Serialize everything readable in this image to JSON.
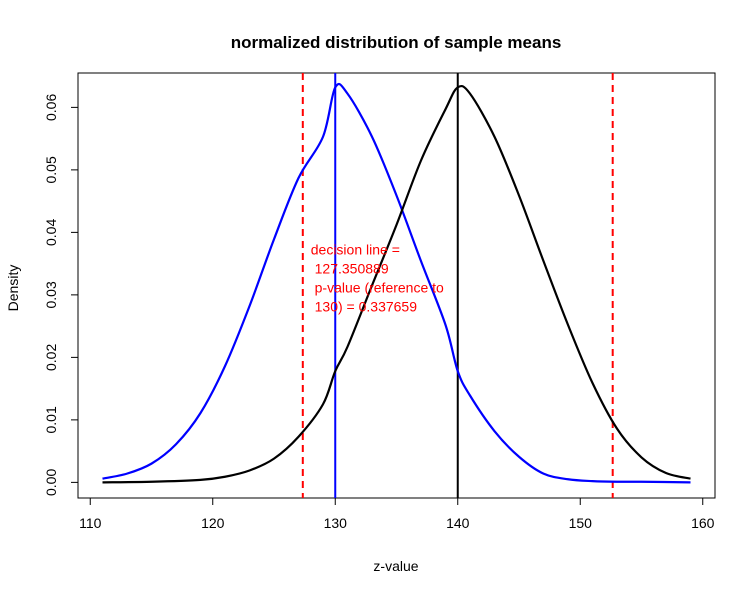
{
  "chart_data": {
    "type": "line",
    "title": "normalized distribution of sample means",
    "xlabel": "z-value",
    "ylabel": "Density",
    "xlim": [
      109,
      161
    ],
    "ylim": [
      -0.0025,
      0.0655
    ],
    "xticks": [
      110,
      120,
      130,
      140,
      150,
      160
    ],
    "yticks": [
      0.0,
      0.01,
      0.02,
      0.03,
      0.04,
      0.05,
      0.06
    ],
    "ytick_labels": [
      "0.00",
      "0.01",
      "0.02",
      "0.03",
      "0.04",
      "0.05",
      "0.06"
    ],
    "grid": false,
    "series": [
      {
        "color": "#0000ff",
        "points": [
          [
            111,
            0.0006
          ],
          [
            113,
            0.0014
          ],
          [
            115,
            0.003
          ],
          [
            117,
            0.0061
          ],
          [
            119,
            0.0111
          ],
          [
            121,
            0.0186
          ],
          [
            123,
            0.0282
          ],
          [
            125,
            0.0389
          ],
          [
            127,
            0.0487
          ],
          [
            129,
            0.0553
          ],
          [
            130,
            0.0632
          ],
          [
            131,
            0.0622
          ],
          [
            133,
            0.0553
          ],
          [
            135,
            0.0459
          ],
          [
            137,
            0.0354
          ],
          [
            139,
            0.0252
          ],
          [
            140,
            0.0178
          ],
          [
            141,
            0.0139
          ],
          [
            143,
            0.0082
          ],
          [
            145,
            0.0041
          ],
          [
            147,
            0.0014
          ],
          [
            149,
            0.0005
          ],
          [
            151,
            0.0002
          ],
          [
            153,
            0.0001
          ],
          [
            155,
            0.0001
          ],
          [
            159,
            0.0
          ]
        ]
      },
      {
        "color": "#000000",
        "points": [
          [
            111,
            0.0
          ],
          [
            115,
            0.0001
          ],
          [
            119,
            0.0004
          ],
          [
            121,
            0.0009
          ],
          [
            123,
            0.0019
          ],
          [
            125,
            0.0038
          ],
          [
            127,
            0.0073
          ],
          [
            129,
            0.0125
          ],
          [
            130,
            0.0178
          ],
          [
            131,
            0.0217
          ],
          [
            133,
            0.0315
          ],
          [
            135,
            0.0412
          ],
          [
            137,
            0.0515
          ],
          [
            139,
            0.0597
          ],
          [
            140,
            0.0632
          ],
          [
            141,
            0.0622
          ],
          [
            143,
            0.0553
          ],
          [
            145,
            0.0459
          ],
          [
            147,
            0.0354
          ],
          [
            149,
            0.0252
          ],
          [
            151,
            0.0159
          ],
          [
            153,
            0.0086
          ],
          [
            155,
            0.004
          ],
          [
            157,
            0.0015
          ],
          [
            159,
            0.0006
          ]
        ]
      }
    ],
    "vlines": [
      {
        "x": 127.350889,
        "color": "#ff0000",
        "dashed": true
      },
      {
        "x": 152.649111,
        "color": "#ff0000",
        "dashed": true
      },
      {
        "x": 130,
        "color": "#0000ff",
        "dashed": false
      },
      {
        "x": 140,
        "color": "#000000",
        "dashed": false
      }
    ],
    "annotation": {
      "x": 128,
      "y": 0.0365,
      "color": "#ff0000",
      "lines": [
        "decision line =",
        " 127.350889",
        " p-value (reference to",
        " 130) = 0.337659"
      ]
    }
  }
}
